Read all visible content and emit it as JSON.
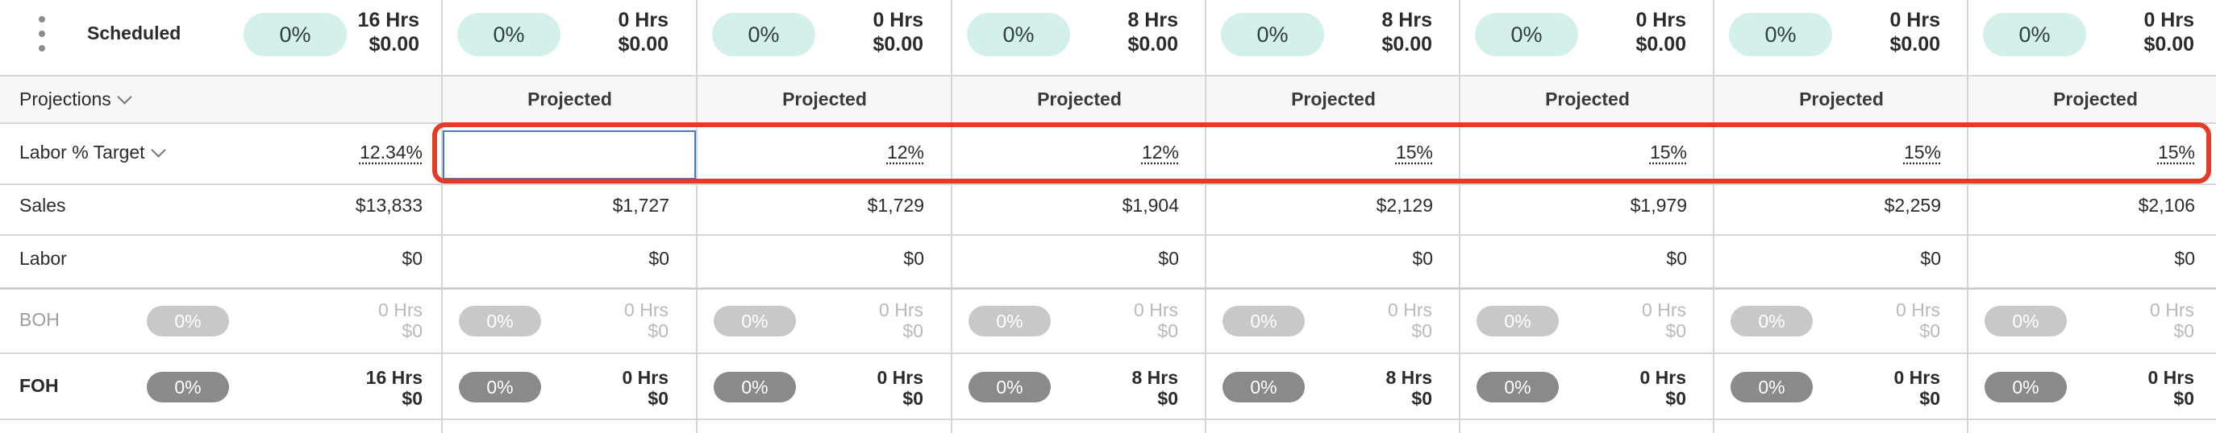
{
  "header": {
    "title": "Scheduled",
    "summary": {
      "pct": "0%",
      "hrs": "16 Hrs",
      "cost": "$0.00"
    },
    "days": [
      {
        "pct": "0%",
        "hrs": "0 Hrs",
        "cost": "$0.00"
      },
      {
        "pct": "0%",
        "hrs": "0 Hrs",
        "cost": "$0.00"
      },
      {
        "pct": "0%",
        "hrs": "8 Hrs",
        "cost": "$0.00"
      },
      {
        "pct": "0%",
        "hrs": "8 Hrs",
        "cost": "$0.00"
      },
      {
        "pct": "0%",
        "hrs": "0 Hrs",
        "cost": "$0.00"
      },
      {
        "pct": "0%",
        "hrs": "0 Hrs",
        "cost": "$0.00"
      },
      {
        "pct": "0%",
        "hrs": "0 Hrs",
        "cost": "$0.00"
      }
    ]
  },
  "projections": {
    "label": "Projections",
    "column_label": "Projected"
  },
  "labor_target": {
    "label": "Labor % Target",
    "total": "12.34%",
    "days": [
      "",
      "12%",
      "12%",
      "15%",
      "15%",
      "15%",
      "15%"
    ]
  },
  "sales": {
    "label": "Sales",
    "total": "$13,833",
    "days": [
      "$1,727",
      "$1,729",
      "$1,904",
      "$2,129",
      "$1,979",
      "$2,259",
      "$2,106"
    ]
  },
  "labor": {
    "label": "Labor",
    "total": "$0",
    "days": [
      "$0",
      "$0",
      "$0",
      "$0",
      "$0",
      "$0",
      "$0"
    ]
  },
  "boh": {
    "label": "BOH",
    "summary": {
      "pct": "0%",
      "hrs": "0 Hrs",
      "cost": "$0"
    },
    "days": [
      {
        "pct": "0%",
        "hrs": "0 Hrs",
        "cost": "$0"
      },
      {
        "pct": "0%",
        "hrs": "0 Hrs",
        "cost": "$0"
      },
      {
        "pct": "0%",
        "hrs": "0 Hrs",
        "cost": "$0"
      },
      {
        "pct": "0%",
        "hrs": "0 Hrs",
        "cost": "$0"
      },
      {
        "pct": "0%",
        "hrs": "0 Hrs",
        "cost": "$0"
      },
      {
        "pct": "0%",
        "hrs": "0 Hrs",
        "cost": "$0"
      },
      {
        "pct": "0%",
        "hrs": "0 Hrs",
        "cost": "$0"
      }
    ]
  },
  "foh": {
    "label": "FOH",
    "summary": {
      "pct": "0%",
      "hrs": "16 Hrs",
      "cost": "$0"
    },
    "days": [
      {
        "pct": "0%",
        "hrs": "0 Hrs",
        "cost": "$0"
      },
      {
        "pct": "0%",
        "hrs": "0 Hrs",
        "cost": "$0"
      },
      {
        "pct": "0%",
        "hrs": "8 Hrs",
        "cost": "$0"
      },
      {
        "pct": "0%",
        "hrs": "8 Hrs",
        "cost": "$0"
      },
      {
        "pct": "0%",
        "hrs": "0 Hrs",
        "cost": "$0"
      },
      {
        "pct": "0%",
        "hrs": "0 Hrs",
        "cost": "$0"
      },
      {
        "pct": "0%",
        "hrs": "0 Hrs",
        "cost": "$0"
      }
    ]
  },
  "colors": {
    "accent_pill": "#d4f0ea",
    "highlight": "#e43b26",
    "focus_border": "#4a78c8"
  }
}
